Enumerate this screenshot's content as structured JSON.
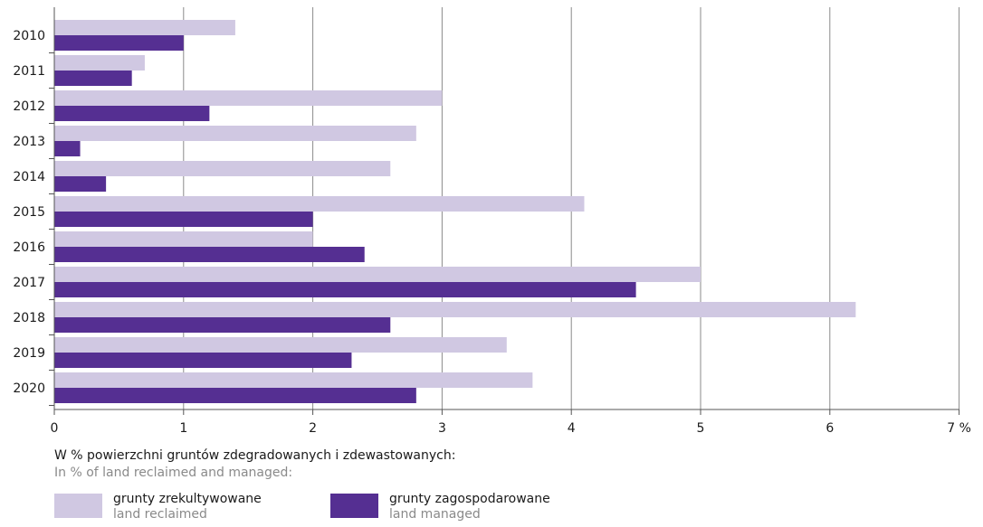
{
  "chart_data": {
    "type": "bar",
    "orientation": "horizontal",
    "categories": [
      "2010",
      "2011",
      "2012",
      "2013",
      "2014",
      "2015",
      "2016",
      "2017",
      "2018",
      "2019",
      "2020"
    ],
    "series": [
      {
        "name": "grunty zrekultywowane",
        "name_en": "land reclaimed",
        "color": "#d0c8e2",
        "values": [
          1.4,
          0.7,
          3.0,
          2.8,
          2.6,
          4.1,
          2.0,
          5.0,
          6.2,
          3.5,
          3.7
        ]
      },
      {
        "name": "grunty zagospodarowane",
        "name_en": "land managed",
        "color": "#552f92",
        "values": [
          1.0,
          0.6,
          1.2,
          0.2,
          0.4,
          2.0,
          2.4,
          4.5,
          2.6,
          2.3,
          2.8
        ]
      }
    ],
    "xlim": [
      0,
      7
    ],
    "x_ticks": [
      "0",
      "1",
      "2",
      "3",
      "4",
      "5",
      "6",
      "7 %"
    ],
    "grid": "vertical",
    "legend": "bottom-left"
  },
  "legend": {
    "title": "W % powierzchni gruntów zdegradowanych i zdewastowanych:",
    "subtitle": "In % of land reclaimed and managed:"
  }
}
